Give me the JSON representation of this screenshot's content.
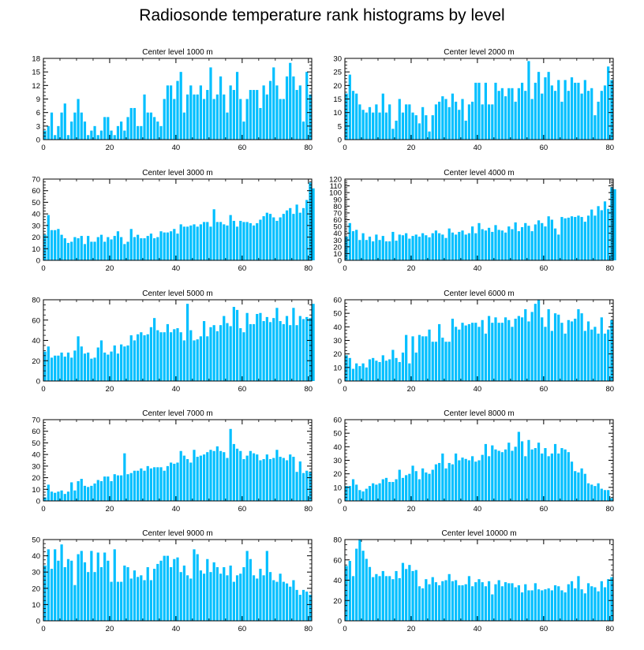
{
  "title": "Radiosonde temperature rank histograms by level",
  "style": {
    "bar_color": "#00bfff",
    "axis_color": "#000000",
    "background": "#ffffff"
  },
  "chart_data": [
    {
      "type": "bar",
      "title": "Center level 1000 m",
      "xlim": [
        0,
        81
      ],
      "ylim": [
        0,
        18
      ],
      "xticks": [
        0,
        20,
        40,
        60,
        80
      ],
      "yticks": [
        0,
        3,
        6,
        9,
        12,
        15,
        18
      ],
      "values": [
        2,
        3,
        6,
        1,
        3,
        6,
        8,
        1,
        4,
        6,
        9,
        6,
        4,
        1,
        2,
        3,
        1,
        2,
        5,
        5,
        2,
        1,
        3,
        4,
        2,
        5,
        7,
        7,
        3,
        3,
        10,
        6,
        6,
        5,
        4,
        3,
        9,
        12,
        12,
        9,
        13,
        15,
        6,
        10,
        12,
        10,
        10,
        12,
        9,
        11,
        16,
        9,
        10,
        14,
        10,
        6,
        12,
        11,
        15,
        9,
        4,
        9,
        11,
        11,
        11,
        7,
        12,
        10,
        13,
        16,
        12,
        9,
        9,
        14,
        17,
        14,
        11,
        12,
        4,
        15,
        10
      ]
    },
    {
      "type": "bar",
      "title": "Center level 2000 m",
      "xlim": [
        0,
        81
      ],
      "ylim": [
        0,
        30
      ],
      "xticks": [
        0,
        20,
        40,
        60,
        80
      ],
      "yticks": [
        0,
        5,
        10,
        15,
        20,
        25,
        30
      ],
      "values": [
        17,
        24,
        18,
        17,
        13,
        11,
        10,
        12,
        10,
        13,
        10,
        17,
        10,
        13,
        4,
        7,
        15,
        10,
        13,
        13,
        10,
        9,
        6,
        12,
        9,
        3,
        9,
        13,
        14,
        16,
        15,
        12,
        17,
        14,
        11,
        15,
        7,
        13,
        14,
        21,
        21,
        13,
        21,
        13,
        13,
        21,
        18,
        19,
        16,
        19,
        19,
        14,
        19,
        21,
        18,
        29,
        15,
        21,
        25,
        17,
        23,
        25,
        20,
        18,
        22,
        14,
        22,
        18,
        23,
        21,
        21,
        17,
        22,
        18,
        19,
        9,
        14,
        18,
        20,
        27,
        22
      ]
    },
    {
      "type": "bar",
      "title": "Center level 3000 m",
      "xlim": [
        0,
        81
      ],
      "ylim": [
        0,
        70
      ],
      "xticks": [
        0,
        20,
        40,
        60,
        80
      ],
      "yticks": [
        0,
        10,
        20,
        30,
        40,
        50,
        60,
        70
      ],
      "values": [
        22,
        39,
        26,
        26,
        27,
        22,
        19,
        15,
        16,
        20,
        19,
        21,
        14,
        21,
        16,
        16,
        20,
        22,
        16,
        20,
        18,
        21,
        25,
        20,
        14,
        16,
        27,
        20,
        22,
        19,
        19,
        21,
        23,
        19,
        20,
        25,
        24,
        24,
        25,
        27,
        23,
        31,
        29,
        29,
        30,
        31,
        29,
        31,
        33,
        33,
        29,
        44,
        33,
        33,
        31,
        30,
        39,
        34,
        29,
        34,
        33,
        33,
        32,
        30,
        32,
        35,
        38,
        41,
        40,
        37,
        34,
        37,
        40,
        43,
        45,
        40,
        48,
        41,
        45,
        52,
        67,
        62
      ]
    },
    {
      "type": "bar",
      "title": "Center level 4000 m",
      "xlim": [
        0,
        81
      ],
      "ylim": [
        0,
        120
      ],
      "xticks": [
        0,
        20,
        40,
        60,
        80
      ],
      "yticks": [
        0,
        10,
        20,
        30,
        40,
        50,
        60,
        70,
        80,
        90,
        100,
        110,
        120
      ],
      "values": [
        35,
        55,
        43,
        45,
        30,
        40,
        30,
        35,
        28,
        38,
        30,
        36,
        28,
        28,
        42,
        29,
        38,
        37,
        40,
        32,
        36,
        38,
        35,
        40,
        37,
        34,
        40,
        44,
        40,
        38,
        33,
        47,
        41,
        38,
        42,
        44,
        38,
        40,
        50,
        40,
        55,
        46,
        44,
        48,
        42,
        52,
        45,
        44,
        41,
        50,
        46,
        56,
        43,
        49,
        55,
        51,
        43,
        53,
        59,
        55,
        50,
        65,
        60,
        47,
        38,
        64,
        62,
        63,
        65,
        64,
        66,
        64,
        57,
        66,
        75,
        66,
        80,
        74,
        87,
        76,
        108,
        105
      ]
    },
    {
      "type": "bar",
      "title": "Center level 5000 m",
      "xlim": [
        0,
        81
      ],
      "ylim": [
        0,
        80
      ],
      "xticks": [
        0,
        20,
        40,
        60,
        80
      ],
      "yticks": [
        0,
        20,
        40,
        60,
        80
      ],
      "values": [
        29,
        34,
        23,
        25,
        25,
        28,
        24,
        28,
        23,
        30,
        44,
        34,
        27,
        28,
        22,
        23,
        33,
        40,
        28,
        26,
        29,
        35,
        27,
        36,
        34,
        35,
        45,
        40,
        46,
        48,
        45,
        46,
        53,
        62,
        50,
        48,
        48,
        56,
        48,
        51,
        52,
        48,
        40,
        76,
        50,
        40,
        41,
        44,
        59,
        44,
        53,
        55,
        49,
        55,
        64,
        57,
        54,
        73,
        70,
        52,
        48,
        67,
        56,
        56,
        66,
        67,
        59,
        63,
        58,
        62,
        72,
        59,
        56,
        64,
        55,
        72,
        55,
        64,
        61,
        63,
        62,
        76
      ]
    },
    {
      "type": "bar",
      "title": "Center level 6000 m",
      "xlim": [
        0,
        81
      ],
      "ylim": [
        0,
        60
      ],
      "xticks": [
        0,
        20,
        40,
        60,
        80
      ],
      "yticks": [
        0,
        10,
        20,
        30,
        40,
        50,
        60
      ],
      "values": [
        19,
        17,
        9,
        13,
        11,
        13,
        10,
        16,
        17,
        15,
        14,
        19,
        15,
        16,
        23,
        17,
        14,
        21,
        34,
        13,
        33,
        21,
        34,
        33,
        33,
        38,
        29,
        29,
        42,
        32,
        29,
        29,
        46,
        40,
        38,
        43,
        41,
        42,
        43,
        43,
        40,
        45,
        35,
        48,
        43,
        47,
        43,
        43,
        47,
        45,
        40,
        46,
        48,
        47,
        53,
        44,
        51,
        57,
        60,
        47,
        40,
        53,
        37,
        50,
        49,
        43,
        35,
        45,
        44,
        46,
        53,
        50,
        37,
        44,
        38,
        40,
        35,
        47,
        35,
        38,
        45
      ]
    },
    {
      "type": "bar",
      "title": "Center level 7000 m",
      "xlim": [
        0,
        81
      ],
      "ylim": [
        0,
        70
      ],
      "xticks": [
        0,
        20,
        40,
        60,
        80
      ],
      "yticks": [
        0,
        10,
        20,
        30,
        40,
        50,
        60,
        70
      ],
      "values": [
        3,
        14,
        8,
        7,
        8,
        9,
        6,
        8,
        16,
        9,
        17,
        19,
        13,
        12,
        13,
        15,
        18,
        17,
        21,
        21,
        17,
        23,
        22,
        22,
        41,
        23,
        24,
        26,
        26,
        28,
        26,
        30,
        28,
        29,
        29,
        29,
        26,
        30,
        33,
        32,
        33,
        43,
        39,
        36,
        33,
        44,
        38,
        39,
        40,
        42,
        44,
        43,
        47,
        43,
        42,
        37,
        62,
        49,
        45,
        43,
        36,
        39,
        43,
        41,
        40,
        35,
        36,
        40,
        36,
        37,
        44,
        38,
        37,
        35,
        40,
        38,
        25,
        34,
        24,
        26,
        25
      ]
    },
    {
      "type": "bar",
      "title": "Center level 8000 m",
      "xlim": [
        0,
        81
      ],
      "ylim": [
        0,
        60
      ],
      "xticks": [
        0,
        20,
        40,
        60,
        80
      ],
      "yticks": [
        0,
        10,
        20,
        30,
        40,
        50,
        60
      ],
      "values": [
        11,
        11,
        16,
        12,
        8,
        7,
        9,
        11,
        13,
        12,
        13,
        16,
        17,
        14,
        14,
        16,
        23,
        17,
        19,
        20,
        26,
        22,
        16,
        24,
        21,
        20,
        23,
        27,
        28,
        35,
        24,
        28,
        27,
        35,
        30,
        32,
        31,
        30,
        33,
        29,
        30,
        34,
        42,
        33,
        41,
        38,
        37,
        36,
        38,
        43,
        37,
        40,
        51,
        44,
        33,
        45,
        38,
        39,
        43,
        35,
        39,
        33,
        35,
        42,
        35,
        39,
        38,
        36,
        29,
        22,
        21,
        24,
        20,
        13,
        12,
        11,
        13,
        9,
        8,
        8,
        2
      ]
    },
    {
      "type": "bar",
      "title": "Center level 9000 m",
      "xlim": [
        0,
        81
      ],
      "ylim": [
        0,
        50
      ],
      "xticks": [
        0,
        20,
        40,
        60,
        80
      ],
      "yticks": [
        0,
        10,
        20,
        30,
        40,
        50
      ],
      "values": [
        34,
        44,
        32,
        44,
        37,
        47,
        33,
        38,
        37,
        22,
        41,
        43,
        36,
        30,
        43,
        30,
        42,
        33,
        42,
        37,
        24,
        44,
        24,
        24,
        34,
        33,
        26,
        31,
        27,
        28,
        25,
        33,
        25,
        32,
        35,
        37,
        40,
        40,
        33,
        38,
        39,
        30,
        34,
        28,
        26,
        44,
        41,
        31,
        29,
        38,
        30,
        36,
        33,
        29,
        33,
        28,
        34,
        24,
        28,
        29,
        33,
        43,
        38,
        28,
        26,
        32,
        28,
        43,
        30,
        25,
        24,
        29,
        24,
        23,
        21,
        25,
        19,
        16,
        19,
        18,
        16
      ]
    },
    {
      "type": "bar",
      "title": "Center level 10000 m",
      "xlim": [
        0,
        81
      ],
      "ylim": [
        0,
        80
      ],
      "xticks": [
        0,
        20,
        40,
        60,
        80
      ],
      "yticks": [
        0,
        20,
        40,
        60,
        80
      ],
      "values": [
        54,
        59,
        44,
        71,
        80,
        69,
        61,
        53,
        43,
        46,
        44,
        49,
        44,
        44,
        41,
        49,
        42,
        57,
        51,
        55,
        49,
        50,
        34,
        32,
        41,
        36,
        43,
        38,
        35,
        39,
        40,
        46,
        39,
        40,
        35,
        35,
        36,
        44,
        34,
        38,
        41,
        38,
        34,
        39,
        26,
        36,
        40,
        34,
        38,
        37,
        37,
        33,
        35,
        28,
        36,
        30,
        30,
        37,
        31,
        30,
        31,
        32,
        30,
        35,
        34,
        30,
        28,
        36,
        39,
        32,
        44,
        31,
        27,
        37,
        34,
        33,
        29,
        39,
        33,
        41,
        43
      ]
    }
  ]
}
